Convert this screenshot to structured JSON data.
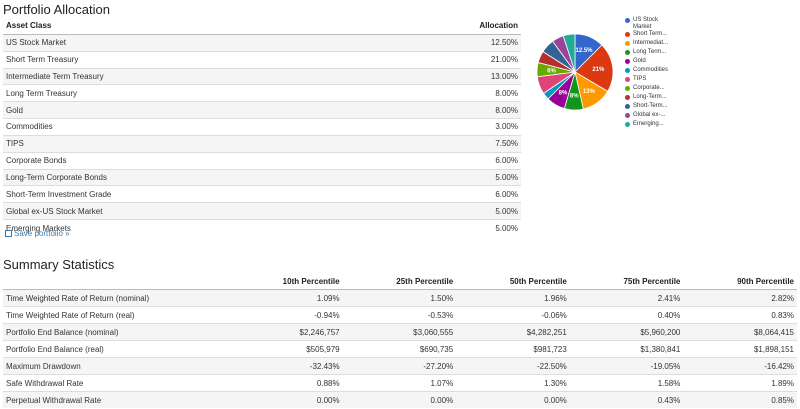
{
  "allocation": {
    "title": "Portfolio Allocation",
    "col_asset": "Asset Class",
    "col_alloc": "Allocation",
    "rows": [
      {
        "asset": "US Stock Market",
        "alloc": "12.50%"
      },
      {
        "asset": "Short Term Treasury",
        "alloc": "21.00%"
      },
      {
        "asset": "Intermediate Term Treasury",
        "alloc": "13.00%"
      },
      {
        "asset": "Long Term Treasury",
        "alloc": "8.00%"
      },
      {
        "asset": "Gold",
        "alloc": "8.00%"
      },
      {
        "asset": "Commodities",
        "alloc": "3.00%"
      },
      {
        "asset": "TIPS",
        "alloc": "7.50%"
      },
      {
        "asset": "Corporate Bonds",
        "alloc": "6.00%"
      },
      {
        "asset": "Long-Term Corporate Bonds",
        "alloc": "5.00%"
      },
      {
        "asset": "Short-Term Investment Grade",
        "alloc": "6.00%"
      },
      {
        "asset": "Global ex-US Stock Market",
        "alloc": "5.00%"
      },
      {
        "asset": "Emerging Markets",
        "alloc": "5.00%"
      }
    ],
    "save_link": "Save portfolio »"
  },
  "chart_data": {
    "type": "pie",
    "slices": [
      {
        "legend": "US Stock Market",
        "value": 12.5,
        "label": "12.5%",
        "color": "#3366cc"
      },
      {
        "legend": "Short Term...",
        "value": 21.0,
        "label": "21%",
        "color": "#dc3912"
      },
      {
        "legend": "Intermediat...",
        "value": 13.0,
        "label": "13%",
        "color": "#ff9900"
      },
      {
        "legend": "Long Term...",
        "value": 8.0,
        "label": "8%",
        "color": "#109618"
      },
      {
        "legend": "Gold",
        "value": 8.0,
        "label": "8%",
        "color": "#990099"
      },
      {
        "legend": "Commodities",
        "value": 3.0,
        "label": "",
        "color": "#0099c6"
      },
      {
        "legend": "TIPS",
        "value": 7.5,
        "label": "",
        "color": "#dd4477"
      },
      {
        "legend": "Corporate...",
        "value": 6.0,
        "label": "6%",
        "color": "#66aa00"
      },
      {
        "legend": "Long-Term...",
        "value": 5.0,
        "label": "",
        "color": "#b82e2e"
      },
      {
        "legend": "Short-Term...",
        "value": 6.0,
        "label": "",
        "color": "#316395"
      },
      {
        "legend": "Global ex-...",
        "value": 5.0,
        "label": "",
        "color": "#994499"
      },
      {
        "legend": "Emerging...",
        "value": 5.0,
        "label": "",
        "color": "#22aa99"
      }
    ]
  },
  "stats": {
    "title": "Summary Statistics",
    "headers": [
      "",
      "10th Percentile",
      "25th Percentile",
      "50th Percentile",
      "75th Percentile",
      "90th Percentile"
    ],
    "rows": [
      [
        "Time Weighted Rate of Return (nominal)",
        "1.09%",
        "1.50%",
        "1.96%",
        "2.41%",
        "2.82%"
      ],
      [
        "Time Weighted Rate of Return (real)",
        "-0.94%",
        "-0.53%",
        "-0.06%",
        "0.40%",
        "0.83%"
      ],
      [
        "Portfolio End Balance (nominal)",
        "$2,246,757",
        "$3,060,555",
        "$4,282,251",
        "$5,960,200",
        "$8,064,415"
      ],
      [
        "Portfolio End Balance (real)",
        "$505,979",
        "$690,735",
        "$981,723",
        "$1,380,841",
        "$1,898,151"
      ],
      [
        "Maximum Drawdown",
        "-32.43%",
        "-27.20%",
        "-22.50%",
        "-19.05%",
        "-16.42%"
      ],
      [
        "Safe Withdrawal Rate",
        "0.88%",
        "1.07%",
        "1.30%",
        "1.58%",
        "1.89%"
      ],
      [
        "Perpetual Withdrawal Rate",
        "0.00%",
        "0.00%",
        "0.00%",
        "0.43%",
        "0.85%"
      ]
    ]
  }
}
